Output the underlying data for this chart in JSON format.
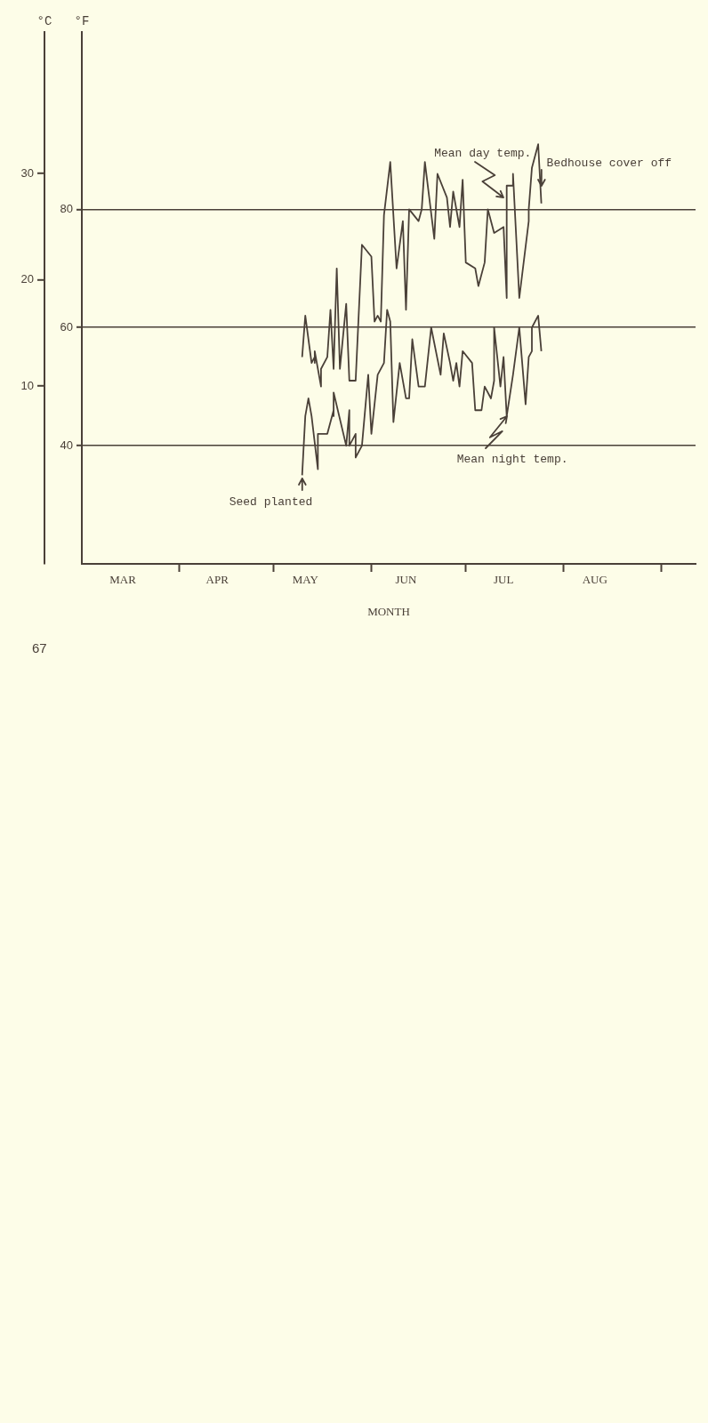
{
  "chart_data": {
    "type": "line",
    "xlabel": "MONTH",
    "ylabel": "°F",
    "y2label": "°C",
    "xlim": [
      "--03-01",
      "--09-12"
    ],
    "xticks": [
      {
        "value": "--03-14",
        "label": "MAR"
      },
      {
        "value": "--04-01",
        "label": null
      },
      {
        "value": "--04-13",
        "label": "APR"
      },
      {
        "value": "--05-01",
        "label": null
      },
      {
        "value": "--05-11",
        "label": "MAY"
      },
      {
        "value": "--06-01",
        "label": null
      },
      {
        "value": "--06-12",
        "label": "JUN"
      },
      {
        "value": "--07-01",
        "label": null
      },
      {
        "value": "--07-13",
        "label": "JUL"
      },
      {
        "value": "--08-01",
        "label": null
      },
      {
        "value": "--08-11",
        "label": "AUG"
      },
      {
        "value": "--09-01",
        "label": null
      }
    ],
    "ylim": [
      20,
      110
    ],
    "yticks": [
      40,
      60,
      80
    ],
    "y2lim": [
      -6.7,
      43.3
    ],
    "y2ticks": [
      10,
      20,
      30
    ],
    "grid": "y",
    "legend": false,
    "marker": "none",
    "series": [
      {
        "color": "#4a4038",
        "x": [
          "--05-10",
          "--05-11",
          "--05-13",
          "--05-14",
          "--05-14",
          "--05-14",
          "--05-16",
          "--05-16",
          "--05-18",
          "--05-19",
          "--05-20",
          "--05-21",
          "--05-22",
          "--05-24",
          "--05-25",
          "--05-27",
          "--05-29",
          "--06-01",
          "--06-02",
          "--06-03",
          "--06-04",
          "--06-05",
          "--06-07",
          "--06-09",
          "--06-11",
          "--06-12",
          "--06-13",
          "--06-16",
          "--06-17",
          "--06-18",
          "--06-21",
          "--06-22",
          "--06-25",
          "--06-26",
          "--06-27",
          "--06-29",
          "--06-30",
          "--07-01",
          "--07-04",
          "--07-05",
          "--07-07",
          "--07-08",
          "--07-10",
          "--07-13",
          "--07-14",
          "--07-14",
          "--07-16",
          "--07-16",
          "--07-18",
          "--07-21",
          "--07-21",
          "--07-22",
          "--07-24",
          "--07-25"
        ],
        "values": [
          55,
          62,
          54,
          55,
          54,
          56,
          50,
          53,
          55,
          63,
          53,
          70,
          53,
          64,
          51,
          51,
          74,
          72,
          61,
          62,
          61,
          79,
          88,
          70,
          78,
          63,
          80,
          78,
          80,
          88,
          75,
          86,
          82,
          77,
          83,
          77,
          85,
          71,
          70,
          67,
          71,
          80,
          76,
          77,
          65,
          84,
          84,
          86,
          65,
          78,
          80,
          87,
          91,
          81
        ]
      },
      {
        "color": "#4a4038",
        "x": [
          "--05-10",
          "--05-11",
          "--05-12",
          "--05-13",
          "--05-15",
          "--05-15",
          "--05-18",
          "--05-20",
          "--05-20",
          "--05-20",
          "--05-24",
          "--05-25",
          "--05-25",
          "--05-27",
          "--05-27",
          "--05-29",
          "--05-31",
          "--06-01",
          "--06-03",
          "--06-05",
          "--06-06",
          "--06-07",
          "--06-08",
          "--06-10",
          "--06-12",
          "--06-13",
          "--06-14",
          "--06-16",
          "--06-18",
          "--06-20",
          "--06-23",
          "--06-24",
          "--06-26",
          "--06-27",
          "--06-28",
          "--06-29",
          "--06-30",
          "--07-03",
          "--07-04",
          "--07-06",
          "--07-07",
          "--07-09",
          "--07-10",
          "--07-10",
          "--07-12",
          "--07-13",
          "--07-14",
          "--07-16",
          "--07-18",
          "--07-20",
          "--07-21",
          "--07-22",
          "--07-22",
          "--07-24",
          "--07-25"
        ],
        "values": [
          35,
          45,
          48,
          45,
          36,
          42,
          42,
          46,
          45,
          49,
          40,
          46,
          40,
          42,
          38,
          40,
          52,
          42,
          52,
          54,
          63,
          61,
          44,
          54,
          48,
          48,
          58,
          50,
          50,
          60,
          52,
          59,
          54,
          51,
          54,
          50,
          56,
          54,
          46,
          46,
          50,
          48,
          51,
          60,
          50,
          55,
          45,
          52,
          60,
          47,
          55,
          56,
          60,
          62,
          56
        ]
      }
    ],
    "annotations": [
      "Bedhouse cover off",
      {
        "text": "Mean day temp.",
        "x": "--07-13",
        "y": 82
      },
      {
        "text": "Mean night temp.",
        "x": "--07-14",
        "y": 45
      },
      "Seed planted",
      "67"
    ]
  }
}
